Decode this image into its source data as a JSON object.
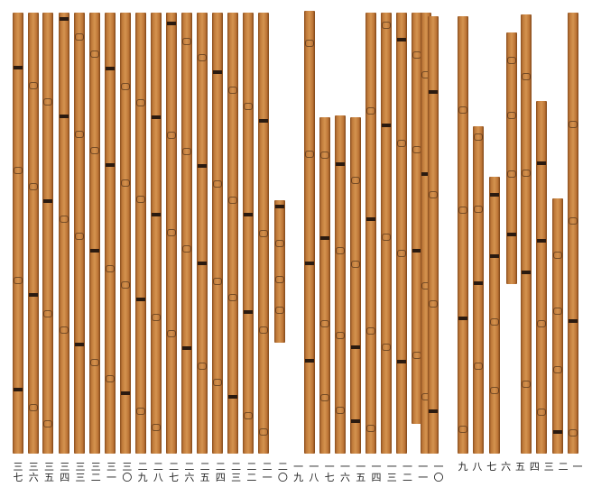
{
  "slip_numbers": [
    "三七",
    "三六",
    "三五",
    "三四",
    "三三",
    "三二",
    "三一",
    "三〇",
    "二九",
    "二八",
    "二七",
    "二六",
    "二五",
    "二四",
    "二三",
    "二二",
    "二一",
    "二〇",
    "一九",
    "一八",
    "一七",
    "一六",
    "一五",
    "一四",
    "一三",
    "一二",
    "一一",
    "一〇",
    "九",
    "八",
    "七",
    "六",
    "五",
    "四",
    "三",
    "二",
    "一"
  ],
  "colors": {
    "bamboo": "#c07a3a",
    "ink": "#2a1a10",
    "background": "#ffffff"
  }
}
